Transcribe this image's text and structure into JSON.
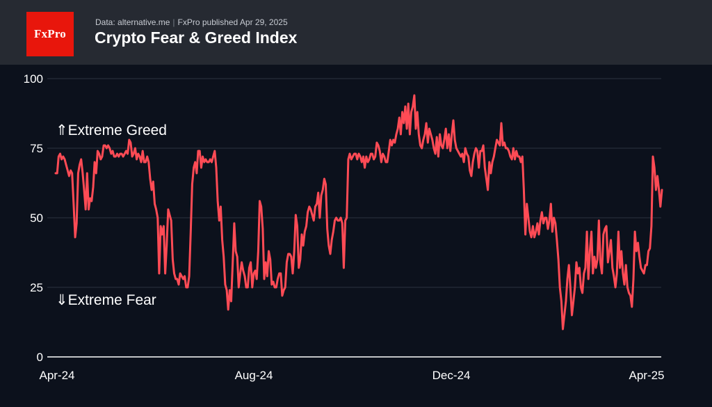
{
  "header": {
    "logo_text": "FxPro",
    "source": "Data: alternative.me",
    "publisher": "FxPro published Apr 29, 2025",
    "title": "Crypto Fear & Greed Index"
  },
  "annotations": {
    "greed": "⇑Extreme Greed",
    "fear": "⇓Extreme Fear"
  },
  "colors": {
    "line": "#ff4b55",
    "background": "#0c111c",
    "header_bg": "#262a32",
    "logo_bg": "#e8160c",
    "grid": "#2c3240"
  },
  "chart_data": {
    "type": "line",
    "title": "Crypto Fear & Greed Index",
    "xlabel": "",
    "ylabel": "",
    "ylim": [
      0,
      100
    ],
    "yticks": [
      0,
      25,
      50,
      75,
      100
    ],
    "xticks": [
      "Apr-24",
      "Aug-24",
      "Dec-24",
      "Apr-25"
    ],
    "grid": true,
    "x_start": "2024-04-01",
    "x_end": "2025-04-29",
    "series": [
      {
        "values": [
          66,
          66,
          72,
          73,
          71,
          72,
          71,
          69,
          67,
          65,
          67,
          66,
          55,
          43,
          48,
          66,
          69,
          71,
          66,
          60,
          53,
          66,
          53,
          57,
          56,
          61,
          70,
          66,
          74,
          73,
          71,
          72,
          76,
          76,
          75,
          76,
          75,
          73,
          74,
          72,
          72,
          73,
          72,
          73,
          73,
          72,
          73,
          74,
          73,
          78,
          77,
          72,
          73,
          75,
          71,
          73,
          72,
          70,
          74,
          70,
          70,
          72,
          70,
          64,
          60,
          63,
          55,
          53,
          50,
          30,
          47,
          44,
          47,
          30,
          40,
          53,
          51,
          49,
          35,
          30,
          28,
          28,
          26,
          30,
          29,
          28,
          29,
          25,
          25,
          29,
          45,
          62,
          68,
          70,
          66,
          74,
          74,
          68,
          72,
          70,
          71,
          70,
          70,
          71,
          70,
          72,
          74,
          68,
          56,
          49,
          54,
          42,
          36,
          26,
          24,
          17,
          24,
          20,
          34,
          48,
          38,
          36,
          25,
          30,
          34,
          31,
          29,
          25,
          25,
          32,
          34,
          25,
          30,
          31,
          28,
          38,
          56,
          54,
          46,
          28,
          34,
          29,
          38,
          35,
          26,
          27,
          25,
          25,
          28,
          30,
          30,
          22,
          24,
          25,
          34,
          37,
          37,
          36,
          30,
          38,
          51,
          47,
          32,
          35,
          44,
          40,
          45,
          47,
          52,
          54,
          53,
          51,
          49,
          54,
          55,
          59,
          50,
          58,
          60,
          64,
          62,
          46,
          40,
          37,
          42,
          45,
          49,
          50,
          49,
          49,
          50,
          48,
          32,
          49,
          50,
          71,
          73,
          71,
          72,
          73,
          73,
          71,
          73,
          72,
          70,
          72,
          68,
          72,
          70,
          71,
          73,
          73,
          71,
          72,
          77,
          76,
          74,
          70,
          73,
          72,
          70,
          70,
          74,
          78,
          76,
          78,
          77,
          80,
          82,
          86,
          80,
          88,
          84,
          90,
          82,
          91,
          80,
          88,
          90,
          94,
          82,
          88,
          80,
          76,
          75,
          78,
          80,
          84,
          77,
          82,
          80,
          78,
          75,
          73,
          79,
          72,
          80,
          76,
          75,
          78,
          82,
          75,
          80,
          74,
          80,
          85,
          78,
          75,
          74,
          73,
          72,
          73,
          70,
          75,
          73,
          72,
          67,
          65,
          70,
          73,
          75,
          74,
          68,
          74,
          74,
          76,
          68,
          64,
          60,
          70,
          66,
          70,
          72,
          75,
          78,
          77,
          76,
          84,
          76,
          77,
          75,
          75,
          74,
          72,
          71,
          75,
          71,
          74,
          72,
          72,
          70,
          72,
          60,
          44,
          55,
          50,
          45,
          43,
          47,
          43,
          45,
          48,
          44,
          49,
          52,
          48,
          50,
          50,
          46,
          49,
          55,
          45,
          50,
          48,
          42,
          35,
          25,
          20,
          10,
          15,
          20,
          28,
          33,
          25,
          15,
          20,
          25,
          34,
          30,
          32,
          25,
          23,
          30,
          32,
          45,
          28,
          38,
          45,
          30,
          36,
          32,
          35,
          49,
          34,
          30,
          44,
          46,
          47,
          34,
          38,
          42,
          32,
          29,
          25,
          30,
          45,
          32,
          38,
          30,
          26,
          33,
          25,
          23,
          22,
          18,
          28,
          45,
          38,
          41,
          36,
          32,
          31,
          30,
          33,
          33,
          38,
          39,
          47,
          72,
          68,
          60,
          65,
          60,
          54,
          60
        ]
      }
    ]
  }
}
